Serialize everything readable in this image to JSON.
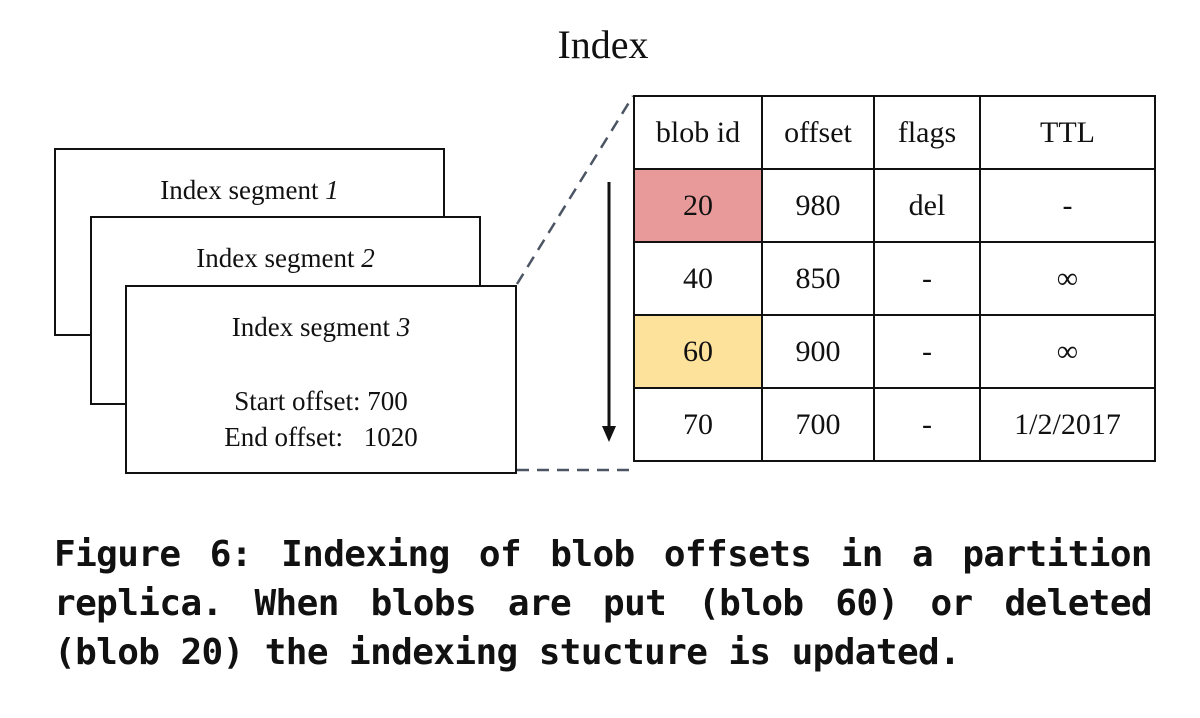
{
  "title": "Index",
  "segments": [
    {
      "label": "Index segment",
      "number": "1"
    },
    {
      "label": "Index segment",
      "number": "2"
    },
    {
      "label": "Index segment",
      "number": "3"
    }
  ],
  "segment_info": {
    "start_label": "Start offset:",
    "start_value": "700",
    "end_label": "End offset:",
    "end_value": "1020"
  },
  "table": {
    "headers": [
      "blob id",
      "offset",
      "flags",
      "TTL"
    ],
    "rows": [
      {
        "blob_id": "20",
        "offset": "980",
        "flags": "del",
        "ttl": "-",
        "highlight": "deleted"
      },
      {
        "blob_id": "40",
        "offset": "850",
        "flags": "-",
        "ttl": "∞",
        "highlight": ""
      },
      {
        "blob_id": "60",
        "offset": "900",
        "flags": "-",
        "ttl": "∞",
        "highlight": "put"
      },
      {
        "blob_id": "70",
        "offset": "700",
        "flags": "-",
        "ttl": "1/2/2017",
        "highlight": ""
      }
    ]
  },
  "colors": {
    "deleted_highlight": "#e89a9a",
    "put_highlight": "#fde29b",
    "connector": "#4b5563",
    "line": "#111111"
  },
  "caption": "Figure 6: Indexing of blob offsets in a partition replica. When blobs are put (blob 60) or deleted (blob 20) the indexing stucture is updated."
}
